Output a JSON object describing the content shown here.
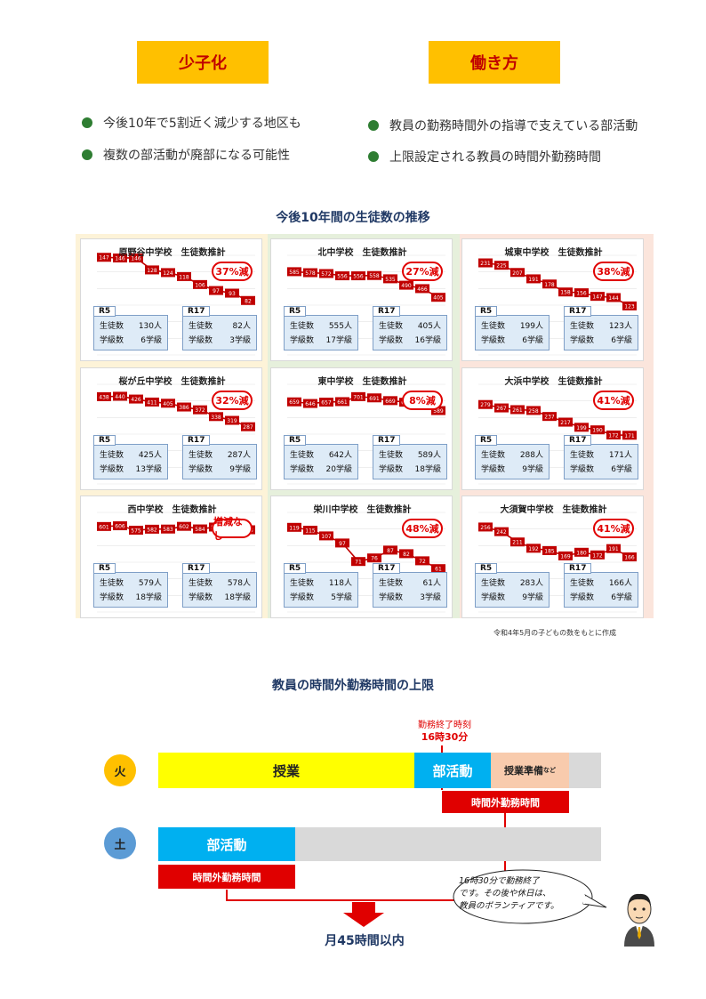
{
  "tags": {
    "left": "少子化",
    "right": "働き方"
  },
  "bullets_left": [
    "今後10年で5割近く減少する地区も",
    "複数の部活動が廃部になる可能性"
  ],
  "bullets_right": [
    "教員の勤務時間外の指導で支えている部活動",
    "上限設定される教員の時間外勤務時間"
  ],
  "section1_title": "今後10年間の生徒数の推移",
  "labels": {
    "r5": "R5",
    "r17": "R17",
    "students": "生徒数",
    "classes": "学級数"
  },
  "schools": [
    {
      "title": "原野谷中学校　生徒数推計",
      "badge": "37%減",
      "r5_students": "130人",
      "r5_classes": "6学級",
      "r17_students": "82人",
      "r17_classes": "3学級",
      "chart_data": {
        "type": "line",
        "values": [
          147,
          146,
          146,
          128,
          124,
          118,
          106,
          97,
          93,
          82
        ],
        "ylim": [
          0,
          150
        ]
      }
    },
    {
      "title": "北中学校　生徒数推計",
      "badge": "27%減",
      "r5_students": "555人",
      "r5_classes": "17学級",
      "r17_students": "405人",
      "r17_classes": "16学級",
      "chart_data": {
        "type": "line",
        "values": [
          585,
          578,
          572,
          556,
          556,
          558,
          535,
          490,
          466,
          405
        ],
        "ylim": [
          0,
          700
        ]
      }
    },
    {
      "title": "城東中学校　生徒数推計",
      "badge": "38%減",
      "r5_students": "199人",
      "r5_classes": "6学級",
      "r17_students": "123人",
      "r17_classes": "6学級",
      "chart_data": {
        "type": "line",
        "values": [
          231,
          225,
          207,
          191,
          178,
          158,
          156,
          147,
          144,
          123
        ],
        "ylim": [
          0,
          250
        ]
      }
    },
    {
      "title": "桜が丘中学校　生徒数推計",
      "badge": "32%減",
      "r5_students": "425人",
      "r5_classes": "13学級",
      "r17_students": "287人",
      "r17_classes": "9学級",
      "chart_data": {
        "type": "line",
        "values": [
          438,
          440,
          426,
          411,
          405,
          386,
          372,
          338,
          319,
          287
        ],
        "ylim": [
          0,
          500
        ]
      }
    },
    {
      "title": "東中学校　生徒数推計",
      "badge": "8%減",
      "r5_students": "642人",
      "r5_classes": "20学級",
      "r17_students": "589人",
      "r17_classes": "18学級",
      "chart_data": {
        "type": "line",
        "values": [
          659,
          646,
          657,
          661,
          701,
          691,
          669,
          656,
          629,
          589
        ],
        "ylim": [
          0,
          800
        ]
      }
    },
    {
      "title": "大浜中学校　生徒数推計",
      "badge": "41%減",
      "r5_students": "288人",
      "r5_classes": "9学級",
      "r17_students": "171人",
      "r17_classes": "6学級",
      "chart_data": {
        "type": "line",
        "values": [
          279,
          267,
          261,
          258,
          237,
          217,
          199,
          190,
          172,
          171
        ],
        "ylim": [
          0,
          350
        ]
      }
    },
    {
      "title": "西中学校　生徒数推計",
      "badge": "増減なし",
      "r5_students": "579人",
      "r5_classes": "18学級",
      "r17_students": "578人",
      "r17_classes": "18学級",
      "chart_data": {
        "type": "line",
        "values": [
          601,
          606,
          575,
          582,
          583,
          602,
          584,
          597,
          585,
          578
        ],
        "ylim": [
          0,
          700
        ]
      }
    },
    {
      "title": "栄川中学校　生徒数推計",
      "badge": "48%減",
      "r5_students": "118人",
      "r5_classes": "5学級",
      "r17_students": "61人",
      "r17_classes": "3学級",
      "chart_data": {
        "type": "line",
        "values": [
          119,
          115,
          107,
          97,
          71,
          76,
          87,
          82,
          72,
          61
        ],
        "ylim": [
          0,
          140
        ]
      }
    },
    {
      "title": "大須賀中学校　生徒数推計",
      "badge": "41%減",
      "r5_students": "283人",
      "r5_classes": "9学級",
      "r17_students": "166人",
      "r17_classes": "6学級",
      "chart_data": {
        "type": "line",
        "values": [
          256,
          242,
          211,
          192,
          185,
          169,
          180,
          172,
          191,
          166
        ],
        "ylim": [
          0,
          300
        ]
      }
    }
  ],
  "source_note": "令和4年5月の子どもの数をもとに作成",
  "section2_title": "教員の時間外勤務時間の上限",
  "end_time_label": "勤務終了時刻",
  "end_time": "16時30分",
  "tue": {
    "day": "火",
    "class": "授業",
    "club": "部活動",
    "prep": "授業準備",
    "prep_suffix": "など",
    "overtime": "時間外勤務時間"
  },
  "sat": {
    "day": "土",
    "club": "部活動",
    "overtime": "時間外勤務時間"
  },
  "bubble_text": [
    "16時30分で勤務終了",
    "です。その後や休日は、",
    "教員のボランティアです。"
  ],
  "limit": "月45時間以内",
  "colors": {
    "class": "#ffff00",
    "club": "#00b0f0",
    "prep": "#f8cbad",
    "gray": "#d9d9d9",
    "red": "#e00000"
  }
}
